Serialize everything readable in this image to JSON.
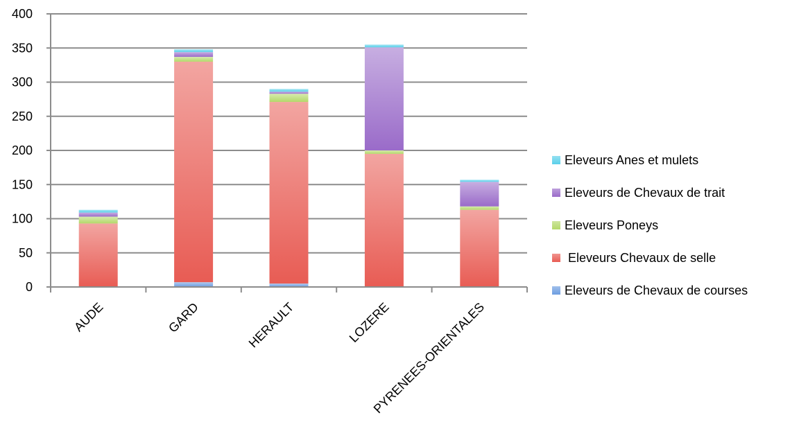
{
  "chart_data": {
    "type": "bar",
    "stacked": true,
    "title": "",
    "xlabel": "",
    "ylabel": "",
    "ylim": [
      0,
      400
    ],
    "yticks": [
      "0",
      "50",
      "100",
      "150",
      "200",
      "250",
      "300",
      "350",
      "400"
    ],
    "grid": true,
    "legend_position": "right",
    "categories": [
      "AUDE",
      "GARD",
      "HERAULT",
      "LOZERE",
      "PYRENEES-ORIENTALES"
    ],
    "series": [
      {
        "name": "Eleveurs de Chevaux de courses",
        "color": "#6d9de0",
        "values": [
          0,
          7,
          5,
          0,
          0
        ]
      },
      {
        "name": " Eleveurs Chevaux de selle",
        "color": "#e85c54",
        "values": [
          93,
          323,
          266,
          195,
          113
        ]
      },
      {
        "name": "Eleveurs Poneys",
        "color": "#b4d86a",
        "values": [
          10,
          7,
          12,
          5,
          5
        ]
      },
      {
        "name": "Eleveurs de Chevaux de trait",
        "color": "#9a6bc9",
        "values": [
          6,
          7,
          3,
          151,
          36
        ]
      },
      {
        "name": "Eleveurs Anes et mulets",
        "color": "#5ad0ea",
        "values": [
          4,
          4,
          4,
          4,
          3
        ]
      }
    ]
  },
  "legend_order": [
    4,
    3,
    2,
    1,
    0
  ]
}
